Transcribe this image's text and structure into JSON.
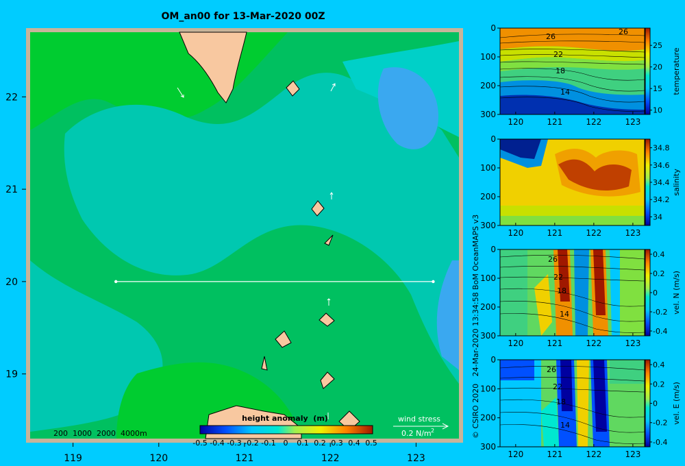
{
  "chart_data": [
    {
      "type": "heatmap",
      "title": "OM_an00 for 13-Mar-2020 00Z",
      "xlim": [
        118.5,
        123.5
      ],
      "ylim": [
        18.3,
        22.7
      ],
      "x_ticks": [
        119,
        120,
        121,
        122,
        123
      ],
      "y_ticks": [
        19,
        20,
        21,
        22
      ],
      "section_line": {
        "x": [
          119.5,
          123.2
        ],
        "y": [
          20,
          20
        ]
      },
      "depth_legend": "200  1000  2000  4000m",
      "colorbar": {
        "label": "height anomaly  (m)",
        "ticks": [
          "-0.5",
          "-0.4",
          "-0.3",
          "-0.2",
          "-0.1",
          "0",
          "0.1",
          "0.2",
          "0.3",
          "0.4",
          "0.5"
        ],
        "range": [
          -0.5,
          0.5
        ]
      },
      "wind_stress_key": {
        "label": "wind stress",
        "value": "0.2 N/m",
        "superscript": "2"
      }
    },
    {
      "type": "heatmap",
      "panel": "temperature",
      "xlim": [
        119.6,
        123.3
      ],
      "ylim": [
        300,
        0
      ],
      "x_ticks": [
        120,
        121,
        122,
        123
      ],
      "y_ticks": [
        0,
        100,
        200,
        300
      ],
      "contour_labels": [
        "26",
        "26",
        "22",
        "18",
        "14"
      ],
      "colorbar": {
        "label": "temperature",
        "ticks": [
          "10",
          "15",
          "20",
          "25"
        ],
        "range": [
          9,
          29
        ]
      }
    },
    {
      "type": "heatmap",
      "panel": "salinity",
      "xlim": [
        119.6,
        123.3
      ],
      "ylim": [
        300,
        0
      ],
      "x_ticks": [
        120,
        121,
        122,
        123
      ],
      "y_ticks": [
        0,
        100,
        200,
        300
      ],
      "colorbar": {
        "label": "salinity",
        "ticks": [
          "34",
          "34.2",
          "34.4",
          "34.6",
          "34.8"
        ],
        "range": [
          33.9,
          34.9
        ]
      }
    },
    {
      "type": "heatmap",
      "panel": "vel. N (m/s)",
      "xlim": [
        119.6,
        123.3
      ],
      "ylim": [
        300,
        0
      ],
      "x_ticks": [
        120,
        121,
        122,
        123
      ],
      "y_ticks": [
        0,
        100,
        200,
        300
      ],
      "contour_labels": [
        "26",
        "22",
        "18",
        "14"
      ],
      "colorbar": {
        "label": "vel. N  (m/s)",
        "ticks": [
          "-0.4",
          "-0.2",
          "0",
          "0.2",
          "0.4"
        ],
        "range": [
          -0.45,
          0.45
        ]
      }
    },
    {
      "type": "heatmap",
      "panel": "vel. E (m/s)",
      "xlim": [
        119.6,
        123.3
      ],
      "ylim": [
        300,
        0
      ],
      "x_ticks": [
        120,
        121,
        122,
        123
      ],
      "y_ticks": [
        0,
        100,
        200,
        300
      ],
      "contour_labels": [
        "26",
        "22",
        "18",
        "14"
      ],
      "colorbar": {
        "label": "vel. E  (m/s)",
        "ticks": [
          "-0.4",
          "-0.2",
          "0",
          "0.2",
          "0.4"
        ],
        "range": [
          -0.45,
          0.45
        ]
      }
    }
  ],
  "credit": "© CSIRO 2020   24-Mar-2020 13:34:58 BoM OceanMAPS v3"
}
